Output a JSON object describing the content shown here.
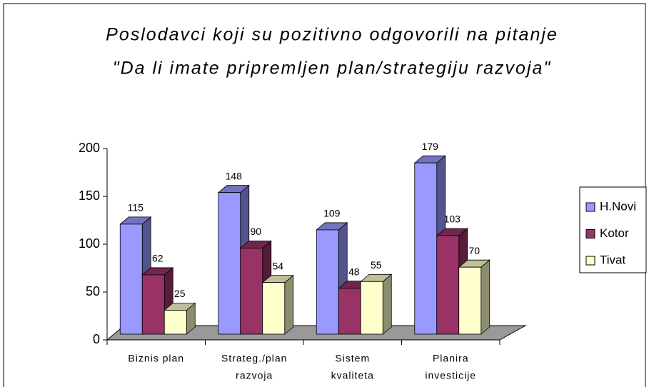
{
  "chart_data": {
    "type": "bar3d",
    "title": [
      "Poslodavci koji su pozitivno odgovorili na pitanje",
      "\"Da li imate pripremljen plan/strategiju razvoja\""
    ],
    "categories": [
      [
        "Biznis plan"
      ],
      [
        "Strateg./plan",
        "razvoja"
      ],
      [
        "Sistem",
        "kvaliteta"
      ],
      [
        "Planira",
        "investicije"
      ]
    ],
    "series": [
      {
        "name": "H.Novi",
        "color": "#9999ff",
        "values": [
          115,
          148,
          109,
          179
        ]
      },
      {
        "name": "Kotor",
        "color": "#993366",
        "values": [
          62,
          90,
          48,
          103
        ]
      },
      {
        "name": "Tivat",
        "color": "#ffffcc",
        "values": [
          25,
          54,
          55,
          70
        ]
      }
    ],
    "ylim": [
      0,
      200
    ],
    "yticks": [
      0,
      50,
      100,
      150,
      200
    ],
    "legend": "right"
  }
}
